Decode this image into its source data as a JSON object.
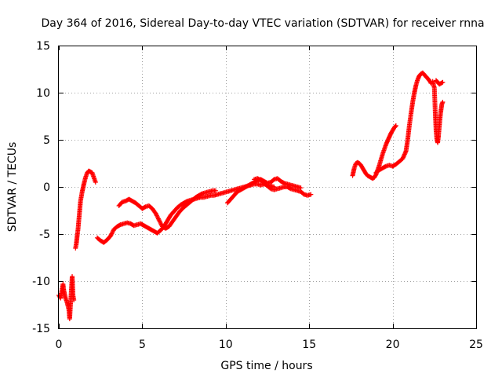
{
  "chart_data": {
    "type": "scatter",
    "title": "Day 364 of 2016, Sidereal Day-to-day VTEC variation (SDTVAR) for receiver rnna",
    "xlabel": "GPS time / hours",
    "ylabel": "SDTVAR / TECUs",
    "xlim": [
      0,
      25
    ],
    "ylim": [
      -15,
      15
    ],
    "xticks": [
      0,
      5,
      10,
      15,
      20,
      25
    ],
    "yticks": [
      -15,
      -10,
      -5,
      0,
      5,
      10,
      15
    ],
    "xtick_labels": [
      "0",
      "5",
      "10",
      "15",
      "20",
      "25"
    ],
    "ytick_labels": [
      "-15",
      "-10",
      "-5",
      "0",
      "5",
      "10",
      "15"
    ],
    "grid": true,
    "marker": "+",
    "color": "#ff0000",
    "series": [
      {
        "name": "rnna",
        "segments": [
          [
            [
              0.0,
              -11.5
            ],
            [
              0.1,
              -11.8
            ],
            [
              0.2,
              -10.8
            ],
            [
              0.25,
              -10.3
            ],
            [
              0.3,
              -11.0
            ],
            [
              0.4,
              -11.8
            ],
            [
              0.5,
              -12.3
            ],
            [
              0.6,
              -13.0
            ],
            [
              0.65,
              -14.0
            ],
            [
              0.7,
              -12.5
            ],
            [
              0.75,
              -11.0
            ],
            [
              0.8,
              -9.5
            ],
            [
              0.85,
              -11.5
            ],
            [
              0.9,
              -12.0
            ]
          ],
          [
            [
              1.0,
              -6.5
            ],
            [
              1.05,
              -6.0
            ],
            [
              1.1,
              -5.2
            ],
            [
              1.15,
              -4.5
            ],
            [
              1.2,
              -3.5
            ],
            [
              1.25,
              -2.5
            ],
            [
              1.3,
              -1.5
            ],
            [
              1.4,
              -0.5
            ],
            [
              1.5,
              0.3
            ],
            [
              1.6,
              1.0
            ],
            [
              1.7,
              1.5
            ],
            [
              1.8,
              1.7
            ],
            [
              1.9,
              1.6
            ],
            [
              2.0,
              1.5
            ],
            [
              2.1,
              1.0
            ],
            [
              2.2,
              0.5
            ]
          ],
          [
            [
              2.3,
              -5.4
            ],
            [
              2.5,
              -5.7
            ],
            [
              2.7,
              -5.9
            ],
            [
              2.9,
              -5.6
            ],
            [
              3.1,
              -5.2
            ],
            [
              3.3,
              -4.5
            ],
            [
              3.5,
              -4.2
            ],
            [
              3.7,
              -4.0
            ],
            [
              3.9,
              -3.9
            ],
            [
              4.1,
              -3.8
            ],
            [
              4.3,
              -3.9
            ],
            [
              4.5,
              -4.1
            ],
            [
              4.7,
              -4.0
            ],
            [
              4.9,
              -3.9
            ],
            [
              5.1,
              -4.1
            ],
            [
              5.3,
              -4.3
            ],
            [
              5.5,
              -4.5
            ],
            [
              5.7,
              -4.7
            ],
            [
              5.9,
              -4.9
            ],
            [
              6.1,
              -4.6
            ],
            [
              6.3,
              -4.2
            ],
            [
              6.5,
              -3.6
            ],
            [
              6.7,
              -3.0
            ],
            [
              6.9,
              -2.6
            ],
            [
              7.1,
              -2.2
            ],
            [
              7.3,
              -1.9
            ],
            [
              7.5,
              -1.7
            ],
            [
              7.7,
              -1.5
            ],
            [
              7.9,
              -1.4
            ],
            [
              8.1,
              -1.3
            ],
            [
              8.3,
              -1.2
            ],
            [
              8.5,
              -1.1
            ],
            [
              8.7,
              -1.1
            ],
            [
              8.9,
              -1.0
            ],
            [
              9.1,
              -0.9
            ],
            [
              9.3,
              -0.9
            ],
            [
              9.5,
              -0.8
            ],
            [
              9.7,
              -0.7
            ],
            [
              9.9,
              -0.6
            ],
            [
              10.1,
              -0.5
            ],
            [
              10.3,
              -0.4
            ],
            [
              10.5,
              -0.3
            ],
            [
              10.7,
              -0.2
            ],
            [
              10.9,
              -0.1
            ],
            [
              11.1,
              0.0
            ],
            [
              11.3,
              0.1
            ],
            [
              11.5,
              0.2
            ],
            [
              11.7,
              0.3
            ],
            [
              11.9,
              0.3
            ],
            [
              12.1,
              0.2
            ],
            [
              12.3,
              0.3
            ],
            [
              12.5,
              0.2
            ],
            [
              12.7,
              0.1
            ],
            [
              12.9,
              0.0
            ]
          ],
          [
            [
              3.6,
              -2.0
            ],
            [
              3.8,
              -1.6
            ],
            [
              4.0,
              -1.5
            ],
            [
              4.2,
              -1.3
            ],
            [
              4.4,
              -1.5
            ],
            [
              4.6,
              -1.7
            ],
            [
              4.8,
              -2.0
            ],
            [
              5.0,
              -2.3
            ],
            [
              5.2,
              -2.1
            ],
            [
              5.4,
              -2.0
            ],
            [
              5.6,
              -2.3
            ],
            [
              5.8,
              -2.8
            ],
            [
              6.0,
              -3.5
            ],
            [
              6.2,
              -4.2
            ],
            [
              6.4,
              -4.4
            ],
            [
              6.6,
              -4.2
            ],
            [
              6.8,
              -3.7
            ],
            [
              7.0,
              -3.2
            ],
            [
              7.2,
              -2.7
            ],
            [
              7.4,
              -2.3
            ],
            [
              7.6,
              -2.0
            ],
            [
              7.8,
              -1.7
            ],
            [
              8.0,
              -1.4
            ],
            [
              8.2,
              -1.1
            ],
            [
              8.4,
              -0.9
            ],
            [
              8.6,
              -0.7
            ],
            [
              8.8,
              -0.6
            ],
            [
              9.0,
              -0.5
            ],
            [
              9.2,
              -0.4
            ],
            [
              9.4,
              -0.4
            ]
          ],
          [
            [
              10.1,
              -1.7
            ],
            [
              10.3,
              -1.3
            ],
            [
              10.5,
              -0.9
            ],
            [
              10.7,
              -0.5
            ],
            [
              10.9,
              -0.3
            ],
            [
              11.1,
              -0.1
            ],
            [
              11.3,
              0.1
            ],
            [
              11.5,
              0.3
            ],
            [
              11.7,
              0.5
            ],
            [
              11.9,
              0.7
            ],
            [
              12.1,
              0.8
            ],
            [
              12.3,
              0.6
            ],
            [
              12.5,
              0.4
            ],
            [
              12.7,
              0.5
            ],
            [
              12.9,
              0.8
            ],
            [
              13.1,
              0.9
            ],
            [
              13.3,
              0.6
            ],
            [
              13.5,
              0.4
            ],
            [
              13.7,
              0.3
            ],
            [
              13.9,
              0.2
            ],
            [
              14.1,
              0.1
            ],
            [
              14.3,
              0.0
            ],
            [
              14.5,
              -0.1
            ]
          ],
          [
            [
              11.7,
              0.8
            ],
            [
              11.9,
              0.9
            ],
            [
              12.1,
              0.7
            ],
            [
              12.3,
              0.4
            ],
            [
              12.5,
              0.1
            ],
            [
              12.7,
              -0.2
            ],
            [
              12.9,
              -0.3
            ],
            [
              13.1,
              -0.2
            ],
            [
              13.3,
              -0.1
            ],
            [
              13.5,
              0.0
            ],
            [
              13.7,
              0.0
            ],
            [
              13.9,
              -0.2
            ],
            [
              14.1,
              -0.3
            ],
            [
              14.3,
              -0.4
            ],
            [
              14.5,
              -0.5
            ],
            [
              14.7,
              -0.8
            ],
            [
              14.9,
              -0.9
            ],
            [
              15.1,
              -0.8
            ]
          ],
          [
            [
              17.6,
              1.2
            ],
            [
              17.7,
              2.0
            ],
            [
              17.8,
              2.5
            ],
            [
              17.9,
              2.6
            ],
            [
              18.0,
              2.5
            ],
            [
              18.1,
              2.3
            ],
            [
              18.2,
              2.0
            ],
            [
              18.3,
              1.7
            ],
            [
              18.4,
              1.4
            ],
            [
              18.5,
              1.2
            ],
            [
              18.6,
              1.1
            ],
            [
              18.7,
              1.0
            ],
            [
              18.8,
              0.9
            ],
            [
              18.9,
              1.0
            ],
            [
              19.0,
              1.3
            ],
            [
              19.1,
              1.8
            ],
            [
              19.2,
              2.3
            ],
            [
              19.3,
              2.9
            ],
            [
              19.4,
              3.5
            ],
            [
              19.5,
              4.0
            ],
            [
              19.6,
              4.5
            ],
            [
              19.7,
              4.9
            ],
            [
              19.8,
              5.3
            ],
            [
              19.9,
              5.7
            ],
            [
              20.0,
              6.0
            ],
            [
              20.1,
              6.3
            ],
            [
              20.2,
              6.5
            ]
          ],
          [
            [
              19.0,
              1.5
            ],
            [
              19.2,
              1.8
            ],
            [
              19.4,
              2.0
            ],
            [
              19.6,
              2.2
            ],
            [
              19.8,
              2.3
            ],
            [
              20.0,
              2.2
            ],
            [
              20.2,
              2.4
            ],
            [
              20.4,
              2.7
            ],
            [
              20.6,
              3.0
            ],
            [
              20.8,
              3.8
            ],
            [
              20.9,
              5.0
            ],
            [
              21.0,
              6.5
            ],
            [
              21.1,
              7.8
            ],
            [
              21.2,
              9.0
            ],
            [
              21.3,
              10.0
            ],
            [
              21.4,
              10.8
            ],
            [
              21.5,
              11.4
            ],
            [
              21.6,
              11.8
            ],
            [
              21.7,
              12.0
            ],
            [
              21.8,
              12.1
            ],
            [
              21.9,
              11.9
            ],
            [
              22.0,
              11.7
            ],
            [
              22.1,
              11.5
            ],
            [
              22.2,
              11.3
            ],
            [
              22.3,
              11.0
            ]
          ],
          [
            [
              22.4,
              11.2
            ],
            [
              22.5,
              10.5
            ],
            [
              22.55,
              8.0
            ],
            [
              22.6,
              6.0
            ],
            [
              22.65,
              5.0
            ],
            [
              22.7,
              4.7
            ],
            [
              22.75,
              5.5
            ],
            [
              22.8,
              6.5
            ],
            [
              22.85,
              7.5
            ],
            [
              22.9,
              8.2
            ],
            [
              22.95,
              8.8
            ],
            [
              23.0,
              9.0
            ]
          ],
          [
            [
              22.6,
              11.3
            ],
            [
              22.7,
              11.1
            ],
            [
              22.8,
              10.9
            ],
            [
              22.9,
              11.0
            ],
            [
              23.0,
              11.1
            ]
          ]
        ]
      }
    ]
  }
}
